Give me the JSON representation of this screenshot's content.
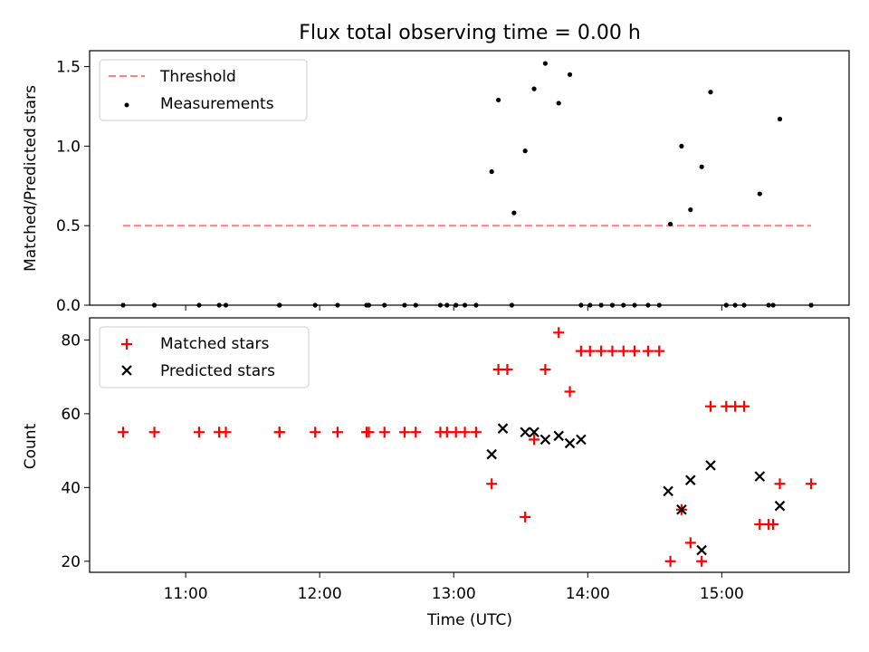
{
  "title": "Flux total observing time = 0.00 h",
  "colors": {
    "threshold": "#ff7f7f",
    "measurement": "#000000",
    "matched": "#ff0000",
    "predicted": "#000000",
    "axis": "#000000",
    "legend_border": "#cccccc"
  },
  "chart_data": [
    {
      "type": "scatter",
      "ylabel": "Matched/Predicted stars",
      "ylim": [
        0,
        1.6
      ],
      "yticks": [
        0.0,
        0.5,
        1.0,
        1.5
      ],
      "ytick_labels": [
        "0.0",
        "0.5",
        "1.0",
        "1.5"
      ],
      "xlim": [
        "10:17",
        "15:57"
      ],
      "legend": {
        "placement": "top-left",
        "entries": [
          "Threshold",
          "Measurements"
        ]
      },
      "threshold": {
        "name": "Threshold",
        "y": 0.5,
        "x_range": [
          "10:32",
          "15:40"
        ]
      },
      "series": [
        {
          "name": "Measurements",
          "x": [
            "10:32",
            "10:46",
            "11:06",
            "11:15",
            "11:18",
            "11:42",
            "11:42",
            "11:58",
            "12:08",
            "12:21",
            "12:22",
            "12:29",
            "12:38",
            "12:43",
            "12:54",
            "12:57",
            "13:01",
            "13:05",
            "13:10",
            "13:17",
            "13:20",
            "13:26",
            "13:27",
            "13:32",
            "13:36",
            "13:41",
            "13:47",
            "13:52",
            "13:57",
            "14:01",
            "14:06",
            "14:11",
            "14:16",
            "14:21",
            "14:27",
            "14:32",
            "14:37",
            "14:42",
            "14:46",
            "14:51",
            "14:55",
            "15:02",
            "15:06",
            "15:10",
            "15:17",
            "15:21",
            "15:23",
            "15:26",
            "15:40"
          ],
          "y": [
            0,
            0,
            0,
            0,
            0,
            0,
            0,
            0,
            0,
            0,
            0,
            0,
            0,
            0,
            0,
            0,
            0,
            0,
            0,
            0.84,
            1.29,
            0,
            0.58,
            0.97,
            1.36,
            1.52,
            1.27,
            1.45,
            0,
            0,
            0,
            0,
            0,
            0,
            0,
            0,
            0.51,
            1.0,
            0.6,
            0.87,
            1.34,
            0,
            0,
            0,
            0.7,
            0,
            0,
            1.17,
            0
          ]
        }
      ]
    },
    {
      "type": "scatter",
      "ylabel": "Count",
      "xlabel": "Time (UTC)",
      "ylim": [
        17,
        86
      ],
      "yticks": [
        20,
        40,
        60,
        80
      ],
      "ytick_labels": [
        "20",
        "40",
        "60",
        "80"
      ],
      "xlim": [
        "10:17",
        "15:57"
      ],
      "xticks": [
        "11:00",
        "12:00",
        "13:00",
        "14:00",
        "15:00"
      ],
      "legend": {
        "placement": "top-left",
        "entries": [
          "Matched stars",
          "Predicted stars"
        ]
      },
      "series": [
        {
          "name": "Matched stars",
          "x": [
            "10:32",
            "10:46",
            "11:06",
            "11:15",
            "11:18",
            "11:42",
            "11:42",
            "11:58",
            "12:08",
            "12:21",
            "12:22",
            "12:29",
            "12:38",
            "12:43",
            "12:54",
            "12:57",
            "13:01",
            "13:05",
            "13:10",
            "13:17",
            "13:20",
            "13:24",
            "13:32",
            "13:36",
            "13:41",
            "13:47",
            "13:52",
            "13:57",
            "14:01",
            "14:06",
            "14:11",
            "14:16",
            "14:21",
            "14:27",
            "14:32",
            "14:37",
            "14:42",
            "14:46",
            "14:51",
            "14:55",
            "15:02",
            "15:06",
            "15:10",
            "15:17",
            "15:21",
            "15:23",
            "15:26",
            "15:40"
          ],
          "y": [
            55,
            55,
            55,
            55,
            55,
            55,
            55,
            55,
            55,
            55,
            55,
            55,
            55,
            55,
            55,
            55,
            55,
            55,
            55,
            41,
            72,
            72,
            32,
            53,
            72,
            82,
            66,
            77,
            77,
            77,
            77,
            77,
            77,
            77,
            77,
            20,
            34,
            25,
            20,
            62,
            62,
            62,
            62,
            30,
            30,
            30,
            41,
            41
          ]
        },
        {
          "name": "Predicted stars",
          "x": [
            "13:17",
            "13:22",
            "13:32",
            "13:36",
            "13:41",
            "13:47",
            "13:52",
            "13:57",
            "14:36",
            "14:42",
            "14:46",
            "14:51",
            "14:55",
            "15:17",
            "15:26"
          ],
          "y": [
            49,
            56,
            55,
            55,
            53,
            54,
            52,
            53,
            39,
            34,
            42,
            23,
            46,
            43,
            35
          ]
        }
      ]
    }
  ]
}
